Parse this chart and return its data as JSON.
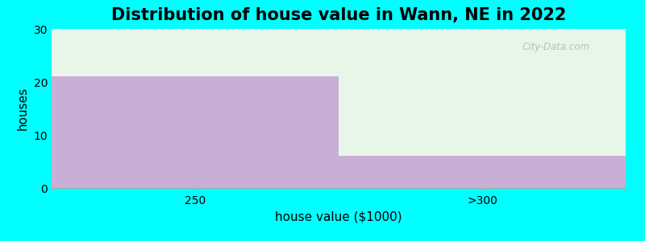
{
  "title": "Distribution of house value in Wann, NE in 2022",
  "xlabel": "house value ($1000)",
  "ylabel": "houses",
  "categories": [
    "250",
    ">300"
  ],
  "values": [
    21,
    6
  ],
  "bar_color": "#C9AED6",
  "plot_bg_color": "#E8F5E9",
  "fig_bg_color": "#00FFFF",
  "ylim": [
    0,
    30
  ],
  "yticks": [
    0,
    10,
    20,
    30
  ],
  "title_fontsize": 15,
  "label_fontsize": 11,
  "tick_fontsize": 10,
  "watermark": "City-Data.com"
}
